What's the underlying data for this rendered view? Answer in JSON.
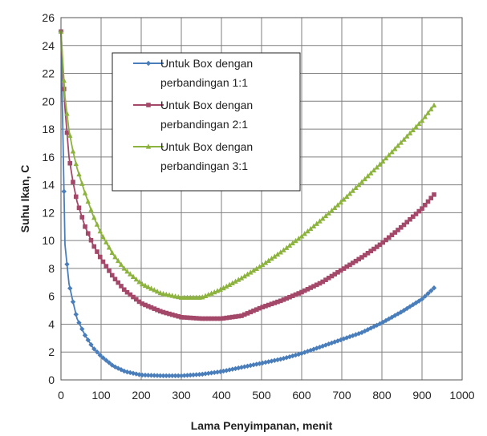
{
  "chart_data": {
    "type": "line",
    "title": "",
    "xlabel": "Lama Penyimpanan, menit",
    "ylabel": "Suhu Ikan, C",
    "xlim": [
      0,
      1000
    ],
    "ylim": [
      0,
      26
    ],
    "x_ticks": [
      "0",
      "100",
      "200",
      "300",
      "400",
      "500",
      "600",
      "700",
      "800",
      "900",
      "1000"
    ],
    "y_ticks": [
      "0",
      "2",
      "4",
      "6",
      "8",
      "10",
      "12",
      "14",
      "16",
      "18",
      "20",
      "22",
      "24",
      "26"
    ],
    "grid": true,
    "legend_position": "top-center",
    "series": [
      {
        "name": "Untuk Box dengan perbandingan 1:1",
        "legend_lines": [
          "Untuk Box dengan",
          "perbandingan 1:1"
        ],
        "color": "#4a7ebb",
        "marker": "diamond",
        "x": [
          0,
          10,
          20,
          30,
          40,
          60,
          80,
          100,
          130,
          160,
          200,
          250,
          300,
          350,
          400,
          450,
          500,
          550,
          600,
          650,
          700,
          750,
          800,
          850,
          900,
          930
        ],
        "y": [
          25,
          9.7,
          6.9,
          5.6,
          4.4,
          3.2,
          2.3,
          1.7,
          1.0,
          0.6,
          0.35,
          0.3,
          0.3,
          0.4,
          0.6,
          0.9,
          1.2,
          1.5,
          1.9,
          2.4,
          2.9,
          3.4,
          4.1,
          4.9,
          5.8,
          6.6
        ]
      },
      {
        "name": "Untuk Box dengan perbandingan 2:1",
        "legend_lines": [
          "Untuk Box dengan",
          "perbandingan 2:1"
        ],
        "color": "#a4486a",
        "marker": "square",
        "x": [
          0,
          10,
          20,
          30,
          40,
          60,
          80,
          100,
          130,
          160,
          200,
          250,
          300,
          350,
          400,
          450,
          500,
          550,
          600,
          650,
          700,
          750,
          800,
          850,
          900,
          930
        ],
        "y": [
          25,
          19.5,
          16.0,
          14.2,
          12.8,
          11.0,
          9.7,
          8.7,
          7.4,
          6.4,
          5.5,
          4.9,
          4.5,
          4.4,
          4.4,
          4.6,
          5.2,
          5.7,
          6.3,
          7.0,
          7.9,
          8.8,
          9.8,
          11.0,
          12.3,
          13.3
        ]
      },
      {
        "name": "Untuk Box dengan perbandingan 3:1",
        "legend_lines": [
          "Untuk Box dengan",
          "perbandingan 3:1"
        ],
        "color": "#8db33f",
        "marker": "triangle",
        "x": [
          0,
          10,
          20,
          30,
          40,
          60,
          80,
          100,
          130,
          160,
          200,
          250,
          300,
          350,
          400,
          450,
          500,
          550,
          600,
          650,
          700,
          750,
          800,
          850,
          900,
          930
        ],
        "y": [
          25,
          20.3,
          17.9,
          16.4,
          15.2,
          13.4,
          11.8,
          10.5,
          9.0,
          7.9,
          6.9,
          6.2,
          5.9,
          5.9,
          6.5,
          7.3,
          8.2,
          9.2,
          10.3,
          11.5,
          12.8,
          14.2,
          15.6,
          17.1,
          18.6,
          19.7
        ]
      }
    ]
  }
}
